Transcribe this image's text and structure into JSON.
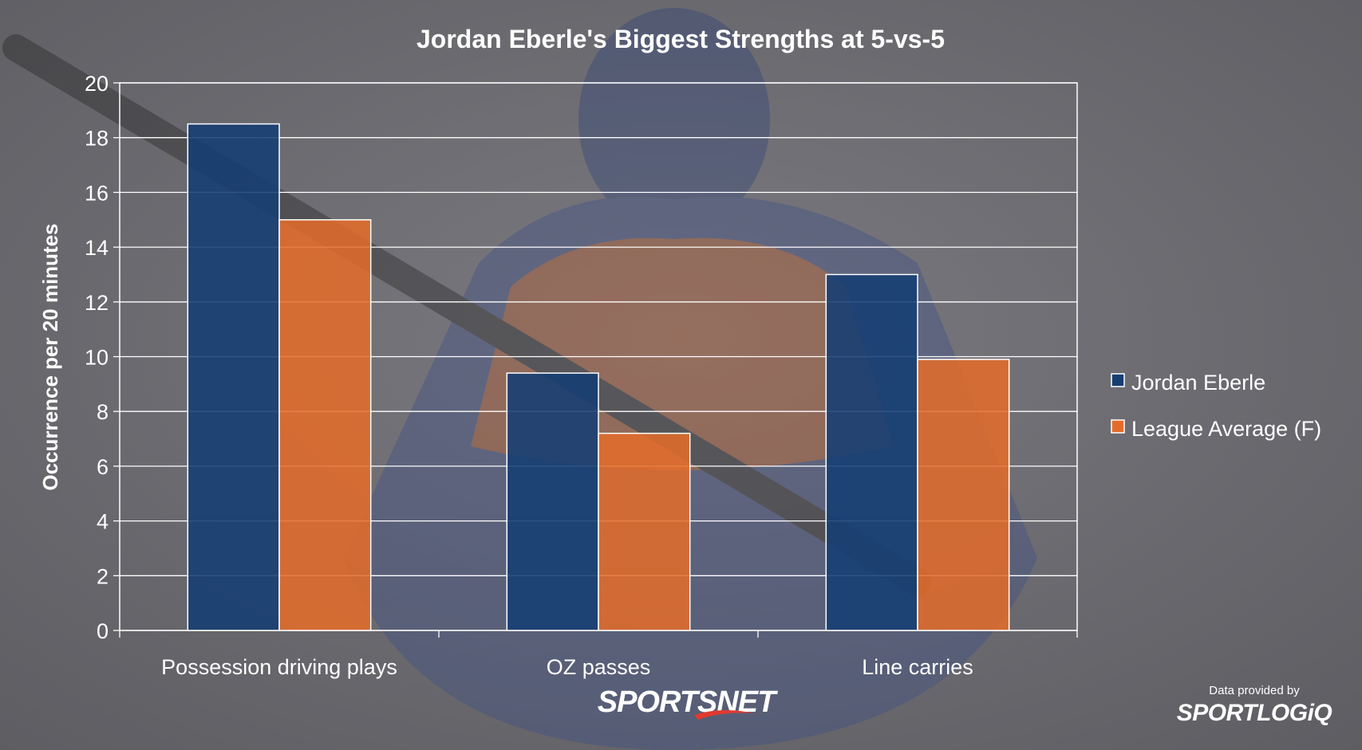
{
  "colors": {
    "eberle": "#153e73",
    "league": "#e46c2a",
    "grid": "#ffffff",
    "text": "#ffffff"
  },
  "branding": {
    "broadcaster": "SPORTSNET",
    "provider_note": "Data provided by",
    "provider": "SPORTLOGiQ"
  },
  "chart_data": {
    "type": "bar",
    "title": "Jordan Eberle's Biggest Strengths at 5-vs-5",
    "xlabel": "",
    "ylabel": "Occurrence per 20 minutes",
    "ylim": [
      0,
      20
    ],
    "yticks": [
      0,
      2,
      4,
      6,
      8,
      10,
      12,
      14,
      16,
      18,
      20
    ],
    "categories": [
      "Possession driving plays",
      "OZ passes",
      "Line carries"
    ],
    "series": [
      {
        "name": "Jordan Eberle",
        "values": [
          18.5,
          9.4,
          13.0
        ]
      },
      {
        "name": "League Average (F)",
        "values": [
          15.0,
          7.2,
          9.9
        ]
      }
    ],
    "grid": true,
    "legend_position": "right"
  }
}
